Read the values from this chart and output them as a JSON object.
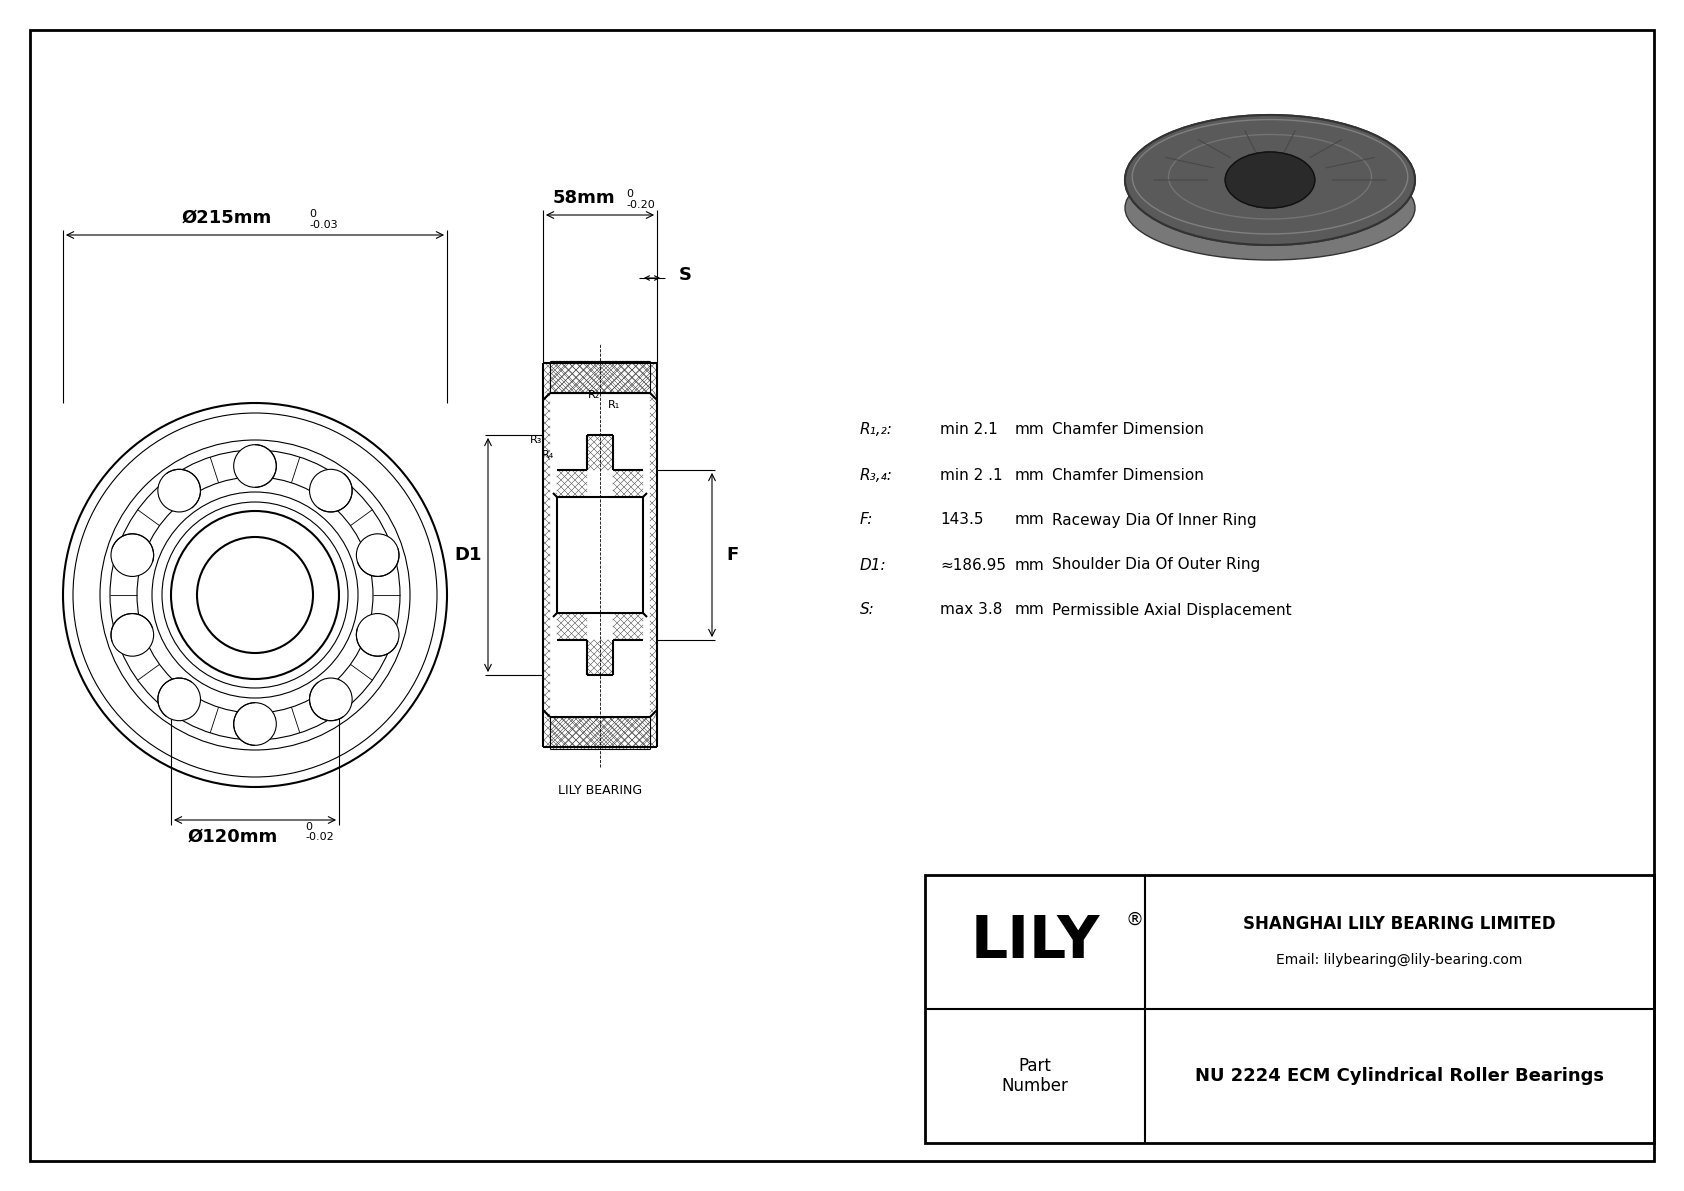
{
  "bg_color": "#ffffff",
  "line_color": "#000000",
  "outer_dia_label": "Ø215mm",
  "outer_dia_tol_top": "0",
  "outer_dia_tol_bot": "-0.03",
  "inner_dia_label": "Ø120mm",
  "inner_dia_tol_top": "0",
  "inner_dia_tol_bot": "-0.02",
  "width_label": "58mm",
  "width_tol_top": "0",
  "width_tol_bot": "-0.20",
  "dim_D1": "D1",
  "dim_F": "F",
  "dim_S": "S",
  "dim_R1": "R₁",
  "dim_R2": "R₂",
  "dim_R3": "R₃",
  "dim_R4": "R₄",
  "lily_bearing_label": "LILY BEARING",
  "logo": "LILY",
  "logo_reg": "®",
  "company": "SHANGHAI LILY BEARING LIMITED",
  "email": "Email: lilybearing@lily-bearing.com",
  "part_label": "Part\nNumber",
  "title": "NU 2224 ECM Cylindrical Roller Bearings",
  "params": [
    {
      "label": "R₁,₂:",
      "value": "min 2.1",
      "unit": "mm",
      "desc": "Chamfer Dimension"
    },
    {
      "label": "R₃,₄:",
      "value": "min 2 .1",
      "unit": "mm",
      "desc": "Chamfer Dimension"
    },
    {
      "label": "F:",
      "value": "143.5",
      "unit": "mm",
      "desc": "Raceway Dia Of Inner Ring"
    },
    {
      "label": "D1:",
      "value": "≈186.95",
      "unit": "mm",
      "desc": "Shoulder Dia Of Outer Ring"
    },
    {
      "label": "S:",
      "value": "max 3.8",
      "unit": "mm",
      "desc": "Permissible Axial Displacement"
    }
  ]
}
